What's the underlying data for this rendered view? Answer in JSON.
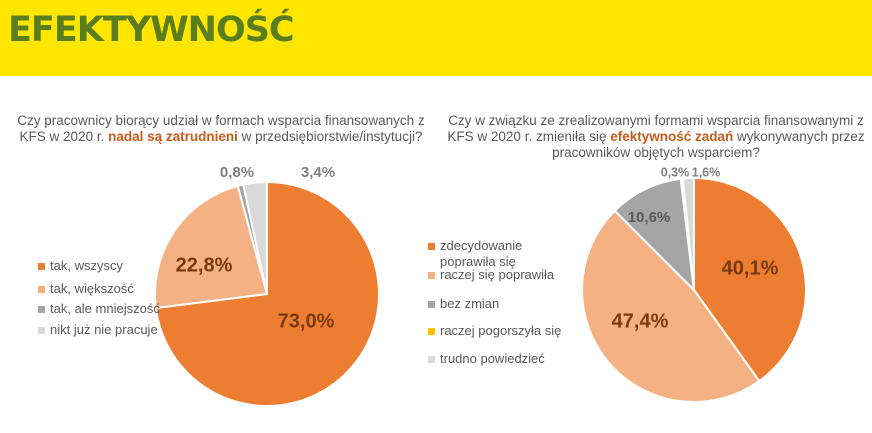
{
  "header": {
    "title": "EFEKTYWNOŚĆ",
    "bg": "#ffe600",
    "color": "#5a7d1e"
  },
  "chart_data": [
    {
      "type": "pie",
      "title_parts": {
        "pre": "Czy pracownicy biorący udział w formach wsparcia finansowanych z KFS w 2020 r. ",
        "highlight": "nadal są zatrudnieni",
        "post": " w przedsiębiorstwie/instytucji?"
      },
      "categories": [
        "tak, wszyscy",
        "tak, większość",
        "tak, ale mniejszość",
        "nikt już nie pracuje"
      ],
      "values": [
        73.0,
        22.8,
        0.8,
        3.4
      ],
      "labels": [
        "73,0%",
        "22,8%",
        "0,8%",
        "3,4%"
      ],
      "colors": [
        "#ed7d31",
        "#f4b183",
        "#a5a5a5",
        "#d9d9d9"
      ],
      "legend_position": "left"
    },
    {
      "type": "pie",
      "title_parts": {
        "pre": "Czy w związku ze zrealizowanymi formami wsparcia finansowanymi z KFS w 2020 r. zmieniła się ",
        "highlight": "efektywność zadań",
        "post": " wykonywanych przez pracowników objętych wsparciem?"
      },
      "categories": [
        "zdecydowanie poprawiła się",
        "raczej się poprawiła",
        "bez zmian",
        "raczej pogorszyła się",
        "trudno powiedzieć"
      ],
      "values": [
        40.1,
        47.4,
        10.6,
        0.3,
        1.6
      ],
      "labels": [
        "40,1%",
        "47,4%",
        "10,6%",
        "0,3%",
        "1,6%"
      ],
      "colors": [
        "#ed7d31",
        "#f4b183",
        "#a5a5a5",
        "#ffc000",
        "#d9d9d9"
      ],
      "legend_position": "left"
    }
  ]
}
